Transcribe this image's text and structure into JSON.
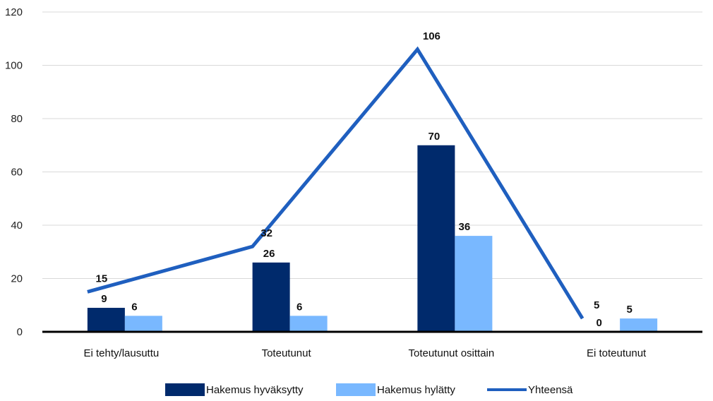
{
  "chart_data": {
    "type": "bar",
    "categories": [
      "Ei tehty/lausuttu",
      "Toteutunut",
      "Toteutunut osittain",
      "Ei toteutunut"
    ],
    "series": [
      {
        "name": "Hakemus hyväksytty",
        "type": "bar",
        "values": [
          9,
          26,
          70,
          0
        ],
        "color": "#002a6c"
      },
      {
        "name": "Hakemus hylätty",
        "type": "bar",
        "values": [
          6,
          6,
          36,
          5
        ],
        "color": "#79b8ff"
      },
      {
        "name": "Yhteensä",
        "type": "line",
        "values": [
          15,
          32,
          106,
          5
        ],
        "color": "#1f5fbf"
      }
    ],
    "ylim": [
      0,
      120
    ],
    "yticks": [
      0,
      20,
      40,
      60,
      80,
      100,
      120
    ],
    "grid": true,
    "legend_position": "bottom",
    "title": "",
    "xlabel": "",
    "ylabel": ""
  }
}
